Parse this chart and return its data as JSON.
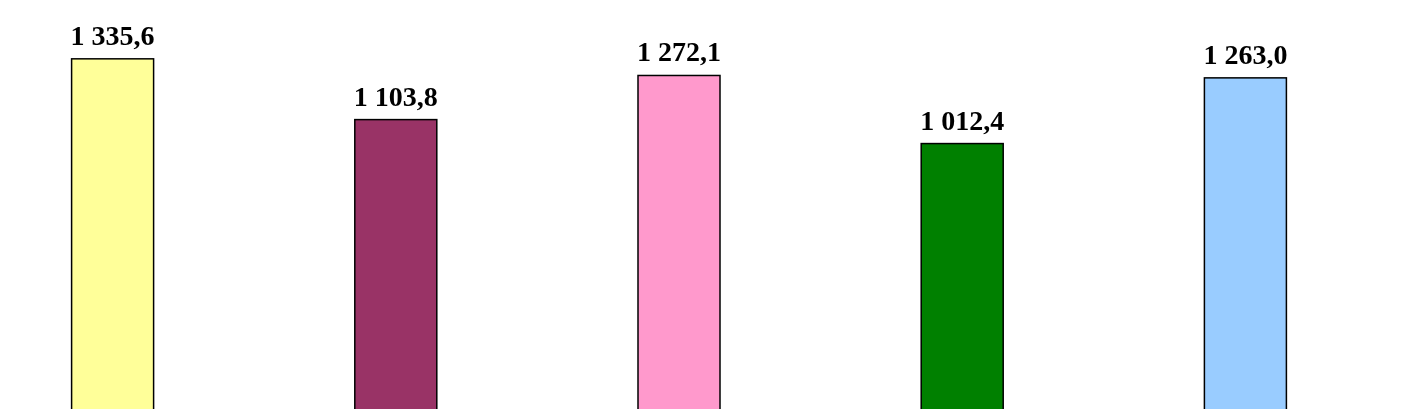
{
  "chart_data": {
    "type": "bar",
    "categories": [
      null,
      null,
      null,
      null,
      null
    ],
    "values": [
      1335.6,
      1103.8,
      1272.1,
      1012.4,
      1263.0
    ],
    "colors": [
      "#ffff99",
      "#993366",
      "#ff99cc",
      "#008000",
      "#99ccff"
    ],
    "value_labels": [
      "1 335,6",
      "1 103,8",
      "1 272,1",
      "1 012,4",
      "1 263,0"
    ],
    "ylim": [
      0,
      1560
    ]
  }
}
